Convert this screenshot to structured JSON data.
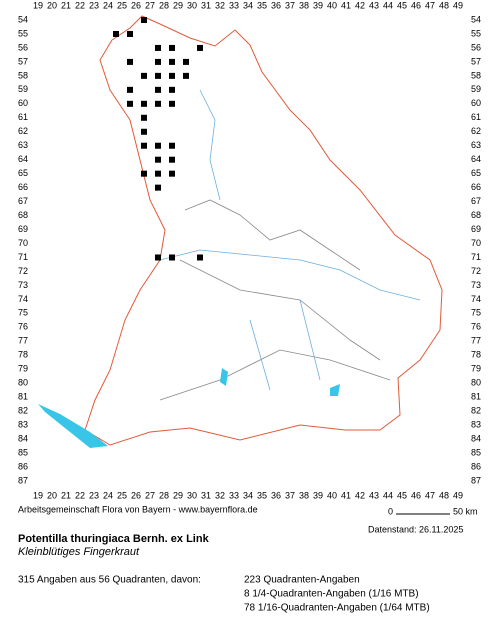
{
  "map": {
    "columns": [
      19,
      20,
      21,
      22,
      23,
      24,
      25,
      26,
      27,
      28,
      29,
      30,
      31,
      32,
      33,
      34,
      35,
      36,
      37,
      38,
      39,
      40,
      41,
      42,
      43,
      44,
      45,
      46,
      47,
      48,
      49
    ],
    "rows": [
      54,
      55,
      56,
      57,
      58,
      59,
      60,
      61,
      62,
      63,
      64,
      65,
      66,
      67,
      68,
      69,
      70,
      71,
      72,
      73,
      74,
      75,
      76,
      77,
      78,
      79,
      80,
      81,
      82,
      83,
      84,
      85,
      86,
      87
    ],
    "markers": [
      [
        27,
        54
      ],
      [
        25,
        55
      ],
      [
        26,
        55
      ],
      [
        28,
        56
      ],
      [
        29,
        56
      ],
      [
        31,
        56
      ],
      [
        26,
        57
      ],
      [
        28,
        57
      ],
      [
        29,
        57
      ],
      [
        30,
        57
      ],
      [
        27,
        58
      ],
      [
        28,
        58
      ],
      [
        29,
        58
      ],
      [
        30,
        58
      ],
      [
        26,
        59
      ],
      [
        28,
        59
      ],
      [
        29,
        59
      ],
      [
        26,
        60
      ],
      [
        27,
        60
      ],
      [
        28,
        60
      ],
      [
        29,
        60
      ],
      [
        27,
        61
      ],
      [
        27,
        62
      ],
      [
        27,
        63
      ],
      [
        28,
        63
      ],
      [
        29,
        63
      ],
      [
        28,
        64
      ],
      [
        29,
        64
      ],
      [
        27,
        65
      ],
      [
        28,
        65
      ],
      [
        29,
        65
      ],
      [
        28,
        66
      ],
      [
        28,
        71
      ],
      [
        29,
        71
      ],
      [
        31,
        71
      ]
    ]
  },
  "footer": {
    "credit": "Arbeitsgemeinschaft Flora von Bayern - www.bayernflora.de",
    "scale_start": "0",
    "scale_end": "50 km",
    "date": "Datenstand: 26.11.2025"
  },
  "species": {
    "title": "Potentilla thuringiaca Bernh. ex Link",
    "subtitle": "Kleinblütiges Fingerkraut"
  },
  "stats": {
    "summary": "315 Angaben aus 56 Quadranten, davon:",
    "lines": [
      "223 Quadranten-Angaben",
      "8 1/4-Quadranten-Angaben (1/16 MTB)",
      "78 1/16-Quadranten-Angaben (1/64 MTB)"
    ]
  }
}
